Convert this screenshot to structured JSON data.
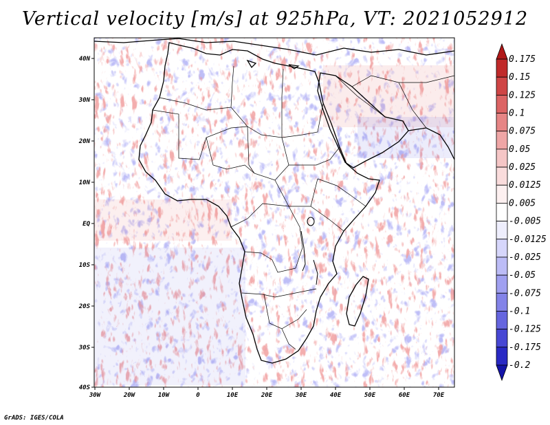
{
  "title": "Vertical velocity [m/s] at 925hPa, VT: 2021052912",
  "credit": "GrADS: IGES/COLA",
  "map": {
    "region": "Africa",
    "lat_range": [
      -40,
      45
    ],
    "lon_range": [
      -30,
      75
    ],
    "lat_ticks": [
      "40N",
      "30N",
      "20N",
      "10N",
      "EQ",
      "10S",
      "20S",
      "30S",
      "40S"
    ],
    "lon_ticks": [
      "30W",
      "20W",
      "10W",
      "0",
      "10E",
      "20E",
      "30E",
      "40E",
      "50E",
      "60E",
      "70E"
    ]
  },
  "colorbar": {
    "labels": [
      "0.175",
      "0.15",
      "0.125",
      "0.1",
      "0.075",
      "0.05",
      "0.025",
      "0.0125",
      "0.005",
      "-0.005",
      "-0.0125",
      "-0.025",
      "-0.05",
      "-0.075",
      "-0.1",
      "-0.125",
      "-0.175",
      "-0.2"
    ],
    "colors": [
      "#b01818",
      "#c02a2a",
      "#cf4545",
      "#dc6464",
      "#e68585",
      "#efa6a6",
      "#f5c6c6",
      "#fadcdc",
      "#fdf0f0",
      "#ffffff",
      "#eeeefd",
      "#d6d6fb",
      "#bcbcf6",
      "#a0a0f0",
      "#8383e8",
      "#6565df",
      "#4747d4",
      "#2929c4",
      "#1414a8"
    ]
  }
}
